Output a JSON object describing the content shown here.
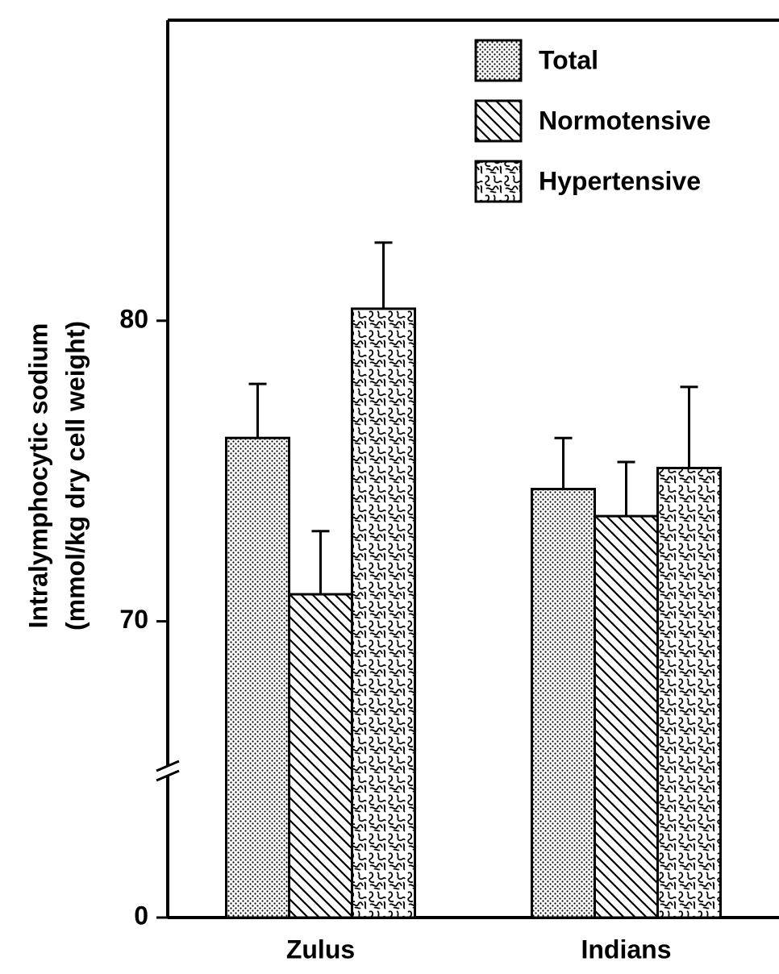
{
  "chart_data": {
    "type": "bar",
    "ylabel": [
      "Intralymphocytic sodium",
      "(mmol/kg dry cell weight)"
    ],
    "categories": [
      "Zulus",
      "Indians"
    ],
    "series": [
      {
        "name": "Total",
        "pattern": "dots",
        "color": "#000000",
        "values": [
          76.1,
          74.4
        ],
        "errors": [
          1.8,
          1.7
        ]
      },
      {
        "name": "Normotensive",
        "pattern": "hatch",
        "color": "#000000",
        "values": [
          70.9,
          73.5
        ],
        "errors": [
          2.1,
          1.8
        ]
      },
      {
        "name": "Hypertensive",
        "pattern": "squiggle",
        "color": "#000000",
        "values": [
          80.4,
          75.1
        ],
        "errors": [
          2.2,
          2.7
        ]
      }
    ],
    "ylim": [
      0,
      90
    ],
    "yticks": [
      0,
      70,
      80
    ],
    "y_break": 65,
    "legend": "top-right",
    "grid": false
  }
}
